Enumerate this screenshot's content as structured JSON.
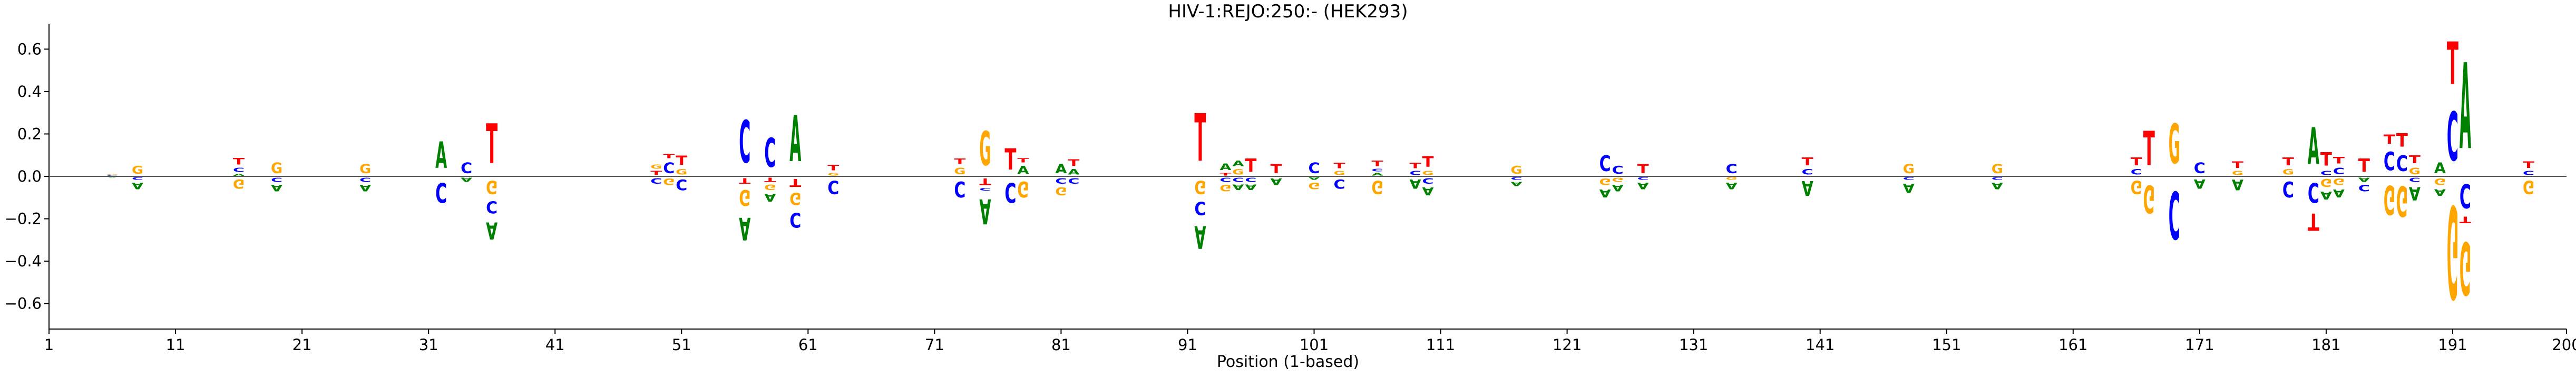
{
  "chart_data": {
    "type": "logo",
    "title": "HIV-1:REJO:250:-  (HEK293)",
    "xlabel": "Position (1-based)",
    "ylabel": "",
    "xlim": [
      1,
      200
    ],
    "ylim": [
      -0.72,
      0.72
    ],
    "xticks": [
      1,
      11,
      21,
      31,
      41,
      51,
      61,
      71,
      81,
      91,
      101,
      111,
      121,
      131,
      141,
      151,
      161,
      171,
      181,
      191,
      200
    ],
    "yticks": [
      -0.6,
      -0.4,
      -0.2,
      0.0,
      0.2,
      0.4,
      0.6
    ],
    "ytick_labels": [
      "−0.6",
      "−0.4",
      "−0.2",
      "0.0",
      "0.2",
      "0.4",
      "0.6"
    ],
    "base_colors": {
      "A": "#008000",
      "C": "#0000ff",
      "G": "#ffa500",
      "T": "#ff0000"
    },
    "positions": [
      {
        "pos": 6,
        "up": [
          {
            "b": "C",
            "h": 0.005
          },
          {
            "b": "G",
            "h": 0.005
          }
        ],
        "down": [
          {
            "b": "A",
            "h": 0.005
          }
        ]
      },
      {
        "pos": 8,
        "up": [
          {
            "b": "G",
            "h": 0.06
          }
        ],
        "down": [
          {
            "b": "C",
            "h": 0.02
          },
          {
            "b": "A",
            "h": 0.05
          }
        ]
      },
      {
        "pos": 16,
        "up": [
          {
            "b": "A",
            "h": 0.015
          },
          {
            "b": "C",
            "h": 0.03
          },
          {
            "b": "T",
            "h": 0.05
          }
        ],
        "down": [
          {
            "b": "G",
            "h": 0.07
          }
        ]
      },
      {
        "pos": 19,
        "up": [
          {
            "b": "G",
            "h": 0.08
          }
        ],
        "down": [
          {
            "b": "C",
            "h": 0.03
          },
          {
            "b": "A",
            "h": 0.05
          }
        ]
      },
      {
        "pos": 26,
        "up": [
          {
            "b": "G",
            "h": 0.07
          }
        ],
        "down": [
          {
            "b": "C",
            "h": 0.03
          },
          {
            "b": "A",
            "h": 0.05
          }
        ]
      },
      {
        "pos": 32,
        "up": [
          {
            "b": "A",
            "h": 0.2
          }
        ],
        "down": [
          {
            "b": "C",
            "h": 0.15
          }
        ]
      },
      {
        "pos": 34,
        "up": [
          {
            "b": "C",
            "h": 0.08
          }
        ],
        "down": [
          {
            "b": "A",
            "h": 0.03
          }
        ]
      },
      {
        "pos": 36,
        "up": [
          {
            "b": "T",
            "h": 0.3
          }
        ],
        "down": [
          {
            "b": "G",
            "h": 0.1
          },
          {
            "b": "C",
            "h": 0.09
          },
          {
            "b": "A",
            "h": 0.13
          }
        ]
      },
      {
        "pos": 49,
        "up": [
          {
            "b": "T",
            "h": 0.03
          },
          {
            "b": "G",
            "h": 0.03
          }
        ],
        "down": [
          {
            "b": "C",
            "h": 0.04
          }
        ]
      },
      {
        "pos": 50,
        "up": [
          {
            "b": "C",
            "h": 0.08
          },
          {
            "b": "T",
            "h": 0.03
          }
        ],
        "down": [
          {
            "b": "G",
            "h": 0.05
          }
        ]
      },
      {
        "pos": 51,
        "up": [
          {
            "b": "G",
            "h": 0.04
          },
          {
            "b": "T",
            "h": 0.07
          }
        ],
        "down": [
          {
            "b": "C",
            "h": 0.08
          }
        ]
      },
      {
        "pos": 56,
        "up": [
          {
            "b": "C",
            "h": 0.32
          }
        ],
        "down": [
          {
            "b": "T",
            "h": 0.04
          },
          {
            "b": "G",
            "h": 0.12
          },
          {
            "b": "A",
            "h": 0.17
          }
        ]
      },
      {
        "pos": 58,
        "up": [
          {
            "b": "C",
            "h": 0.22
          }
        ],
        "down": [
          {
            "b": "T",
            "h": 0.03
          },
          {
            "b": "G",
            "h": 0.04
          },
          {
            "b": "A",
            "h": 0.06
          }
        ]
      },
      {
        "pos": 60,
        "up": [
          {
            "b": "A",
            "h": 0.35
          }
        ],
        "down": [
          {
            "b": "T",
            "h": 0.06
          },
          {
            "b": "G",
            "h": 0.09
          },
          {
            "b": "C",
            "h": 0.11
          }
        ]
      },
      {
        "pos": 63,
        "up": [
          {
            "b": "G",
            "h": 0.02
          },
          {
            "b": "T",
            "h": 0.04
          }
        ],
        "down": [
          {
            "b": "C",
            "h": 0.1
          }
        ]
      },
      {
        "pos": 73,
        "up": [
          {
            "b": "G",
            "h": 0.05
          },
          {
            "b": "T",
            "h": 0.04
          }
        ],
        "down": [
          {
            "b": "C",
            "h": 0.12
          }
        ]
      },
      {
        "pos": 75,
        "up": [
          {
            "b": "G",
            "h": 0.26
          }
        ],
        "down": [
          {
            "b": "T",
            "h": 0.05
          },
          {
            "b": "C",
            "h": 0.02
          },
          {
            "b": "A",
            "h": 0.19
          }
        ]
      },
      {
        "pos": 77,
        "up": [
          {
            "b": "T",
            "h": 0.16
          }
        ],
        "down": [
          {
            "b": "C",
            "h": 0.15
          }
        ]
      },
      {
        "pos": 78,
        "up": [
          {
            "b": "A",
            "h": 0.06
          },
          {
            "b": "T",
            "h": 0.03
          }
        ],
        "down": [
          {
            "b": "G",
            "h": 0.12
          }
        ]
      },
      {
        "pos": 81,
        "up": [
          {
            "b": "A",
            "h": 0.07
          }
        ],
        "down": [
          {
            "b": "C",
            "h": 0.04
          },
          {
            "b": "G",
            "h": 0.06
          }
        ]
      },
      {
        "pos": 82,
        "up": [
          {
            "b": "A",
            "h": 0.04
          },
          {
            "b": "T",
            "h": 0.05
          }
        ],
        "down": [
          {
            "b": "C",
            "h": 0.04
          }
        ]
      },
      {
        "pos": 92,
        "up": [
          {
            "b": "T",
            "h": 0.36
          }
        ],
        "down": [
          {
            "b": "G",
            "h": 0.1
          },
          {
            "b": "C",
            "h": 0.1
          },
          {
            "b": "A",
            "h": 0.17
          }
        ]
      },
      {
        "pos": 94,
        "up": [
          {
            "b": "T",
            "h": 0.02
          },
          {
            "b": "A",
            "h": 0.05
          }
        ],
        "down": [
          {
            "b": "C",
            "h": 0.03
          },
          {
            "b": "G",
            "h": 0.05
          }
        ]
      },
      {
        "pos": 95,
        "up": [
          {
            "b": "G",
            "h": 0.04
          },
          {
            "b": "A",
            "h": 0.04
          }
        ],
        "down": [
          {
            "b": "C",
            "h": 0.03
          },
          {
            "b": "A",
            "h": 0.04
          }
        ]
      },
      {
        "pos": 96,
        "up": [
          {
            "b": "T",
            "h": 0.1
          }
        ],
        "down": [
          {
            "b": "C",
            "h": 0.03
          },
          {
            "b": "A",
            "h": 0.04
          }
        ]
      },
      {
        "pos": 98,
        "up": [
          {
            "b": "T",
            "h": 0.07
          }
        ],
        "down": [
          {
            "b": "A",
            "h": 0.05
          }
        ]
      },
      {
        "pos": 101,
        "up": [
          {
            "b": "C",
            "h": 0.08
          }
        ],
        "down": [
          {
            "b": "A",
            "h": 0.02
          },
          {
            "b": "G",
            "h": 0.05
          }
        ]
      },
      {
        "pos": 103,
        "up": [
          {
            "b": "G",
            "h": 0.03
          },
          {
            "b": "T",
            "h": 0.04
          }
        ],
        "down": [
          {
            "b": "C",
            "h": 0.07
          }
        ]
      },
      {
        "pos": 106,
        "up": [
          {
            "b": "A",
            "h": 0.02
          },
          {
            "b": "C",
            "h": 0.02
          },
          {
            "b": "T",
            "h": 0.04
          }
        ],
        "down": [
          {
            "b": "G",
            "h": 0.1
          }
        ]
      },
      {
        "pos": 109,
        "up": [
          {
            "b": "C",
            "h": 0.03
          },
          {
            "b": "T",
            "h": 0.04
          }
        ],
        "down": [
          {
            "b": "A",
            "h": 0.07
          }
        ]
      },
      {
        "pos": 110,
        "up": [
          {
            "b": "G",
            "h": 0.03
          },
          {
            "b": "T",
            "h": 0.08
          }
        ],
        "down": [
          {
            "b": "C",
            "h": 0.04
          },
          {
            "b": "A",
            "h": 0.06
          }
        ]
      },
      {
        "pos": 117,
        "up": [
          {
            "b": "G",
            "h": 0.06
          }
        ],
        "down": [
          {
            "b": "C",
            "h": 0.02
          },
          {
            "b": "A",
            "h": 0.03
          }
        ]
      },
      {
        "pos": 124,
        "up": [
          {
            "b": "C",
            "h": 0.12
          }
        ],
        "down": [
          {
            "b": "G",
            "h": 0.05
          },
          {
            "b": "A",
            "h": 0.06
          }
        ]
      },
      {
        "pos": 125,
        "up": [
          {
            "b": "C",
            "h": 0.06
          }
        ],
        "down": [
          {
            "b": "G",
            "h": 0.03
          },
          {
            "b": "A",
            "h": 0.05
          }
        ]
      },
      {
        "pos": 127,
        "up": [
          {
            "b": "T",
            "h": 0.07
          }
        ],
        "down": [
          {
            "b": "C",
            "h": 0.02
          },
          {
            "b": "A",
            "h": 0.05
          }
        ]
      },
      {
        "pos": 134,
        "up": [
          {
            "b": "C",
            "h": 0.07
          }
        ],
        "down": [
          {
            "b": "G",
            "h": 0.02
          },
          {
            "b": "A",
            "h": 0.05
          }
        ]
      },
      {
        "pos": 140,
        "up": [
          {
            "b": "C",
            "h": 0.04
          },
          {
            "b": "T",
            "h": 0.06
          }
        ],
        "down": [
          {
            "b": "A",
            "h": 0.11
          }
        ]
      },
      {
        "pos": 148,
        "up": [
          {
            "b": "G",
            "h": 0.07
          }
        ],
        "down": [
          {
            "b": "C",
            "h": 0.02
          },
          {
            "b": "A",
            "h": 0.07
          }
        ]
      },
      {
        "pos": 155,
        "up": [
          {
            "b": "G",
            "h": 0.07
          }
        ],
        "down": [
          {
            "b": "C",
            "h": 0.02
          },
          {
            "b": "A",
            "h": 0.05
          }
        ]
      },
      {
        "pos": 166,
        "up": [
          {
            "b": "C",
            "h": 0.04
          },
          {
            "b": "T",
            "h": 0.06
          }
        ],
        "down": [
          {
            "b": "G",
            "h": 0.1
          }
        ]
      },
      {
        "pos": 167,
        "up": [
          {
            "b": "T",
            "h": 0.26
          }
        ],
        "down": [
          {
            "b": "G",
            "h": 0.21
          }
        ]
      },
      {
        "pos": 169,
        "up": [
          {
            "b": "G",
            "h": 0.3
          }
        ],
        "down": [
          {
            "b": "C",
            "h": 0.36
          }
        ]
      },
      {
        "pos": 171,
        "up": [
          {
            "b": "C",
            "h": 0.08
          }
        ],
        "down": [
          {
            "b": "A",
            "h": 0.07
          }
        ]
      },
      {
        "pos": 174,
        "up": [
          {
            "b": "G",
            "h": 0.03
          },
          {
            "b": "T",
            "h": 0.05
          }
        ],
        "down": [
          {
            "b": "A",
            "h": 0.08
          }
        ]
      },
      {
        "pos": 178,
        "up": [
          {
            "b": "G",
            "h": 0.04
          },
          {
            "b": "T",
            "h": 0.06
          }
        ],
        "down": [
          {
            "b": "C",
            "h": 0.12
          }
        ]
      },
      {
        "pos": 180,
        "up": [
          {
            "b": "A",
            "h": 0.28
          }
        ],
        "down": [
          {
            "b": "C",
            "h": 0.15
          },
          {
            "b": "T",
            "h": 0.13
          }
        ]
      },
      {
        "pos": 181,
        "up": [
          {
            "b": "C",
            "h": 0.03
          },
          {
            "b": "T",
            "h": 0.1
          }
        ],
        "down": [
          {
            "b": "G",
            "h": 0.06
          },
          {
            "b": "A",
            "h": 0.06
          }
        ]
      },
      {
        "pos": 182,
        "up": [
          {
            "b": "C",
            "h": 0.05
          },
          {
            "b": "T",
            "h": 0.05
          }
        ],
        "down": [
          {
            "b": "G",
            "h": 0.05
          },
          {
            "b": "A",
            "h": 0.06
          }
        ]
      },
      {
        "pos": 184,
        "up": [
          {
            "b": "T",
            "h": 0.1
          }
        ],
        "down": [
          {
            "b": "A",
            "h": 0.03
          },
          {
            "b": "C",
            "h": 0.05
          }
        ]
      },
      {
        "pos": 186,
        "up": [
          {
            "b": "C",
            "h": 0.14
          },
          {
            "b": "T",
            "h": 0.07
          }
        ],
        "down": [
          {
            "b": "G",
            "h": 0.22
          }
        ]
      },
      {
        "pos": 187,
        "up": [
          {
            "b": "C",
            "h": 0.12
          },
          {
            "b": "T",
            "h": 0.1
          }
        ],
        "down": [
          {
            "b": "G",
            "h": 0.23
          }
        ]
      },
      {
        "pos": 188,
        "up": [
          {
            "b": "G",
            "h": 0.05
          },
          {
            "b": "T",
            "h": 0.06
          }
        ],
        "down": [
          {
            "b": "C",
            "h": 0.03
          },
          {
            "b": "A",
            "h": 0.1
          }
        ]
      },
      {
        "pos": 190,
        "up": [
          {
            "b": "A",
            "h": 0.08
          }
        ],
        "down": [
          {
            "b": "G",
            "h": 0.05
          },
          {
            "b": "A",
            "h": 0.05
          }
        ]
      },
      {
        "pos": 191,
        "up": [
          {
            "b": "C",
            "h": 0.37
          },
          {
            "b": "T",
            "h": 0.32
          }
        ],
        "down": [
          {
            "b": "G",
            "h": 0.7
          }
        ]
      },
      {
        "pos": 192,
        "up": [
          {
            "b": "A",
            "h": 0.65
          }
        ],
        "down": [
          {
            "b": "C",
            "h": 0.18
          },
          {
            "b": "T",
            "h": 0.05
          },
          {
            "b": "G",
            "h": 0.4
          }
        ]
      },
      {
        "pos": 197,
        "up": [
          {
            "b": "C",
            "h": 0.03
          },
          {
            "b": "T",
            "h": 0.05
          }
        ],
        "down": [
          {
            "b": "G",
            "h": 0.1
          }
        ]
      }
    ]
  }
}
